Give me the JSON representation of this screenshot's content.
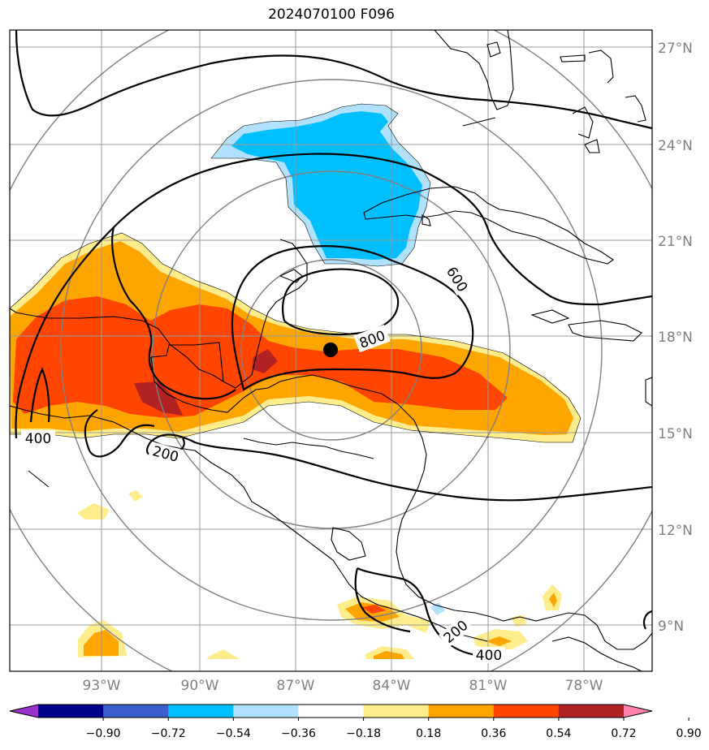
{
  "title": "2024070100 F096",
  "lat_labels": [
    "27°N",
    "24°N",
    "21°N",
    "18°N",
    "15°N",
    "12°N",
    "9°N"
  ],
  "lon_labels": [
    "93°W",
    "90°W",
    "87°W",
    "84°W",
    "81°W",
    "78°W"
  ],
  "contour_labels": [
    "600",
    "800",
    "400",
    "200",
    "200",
    "400"
  ],
  "colorbar": {
    "ticks": [
      "−0.90",
      "−0.72",
      "−0.54",
      "−0.36",
      "−0.18",
      "0.18",
      "0.36",
      "0.54",
      "0.72",
      "0.90"
    ],
    "colors": [
      "#9932cc",
      "#00008b",
      "#3a5fcd",
      "#00bfff",
      "#b0e2ff",
      "#ffffff",
      "#ffec8b",
      "#ffa500",
      "#ff4500",
      "#b22222",
      "#ff82ab"
    ]
  },
  "colors": {
    "positive_weak": "#ffec8b",
    "positive_mid": "#ffa500",
    "positive_strong": "#ff4500",
    "positive_max": "#b22222",
    "negative_mid": "#00bfff",
    "negative_weak": "#b0e2ff",
    "grid": "#999999",
    "range_rings": "#808080"
  }
}
